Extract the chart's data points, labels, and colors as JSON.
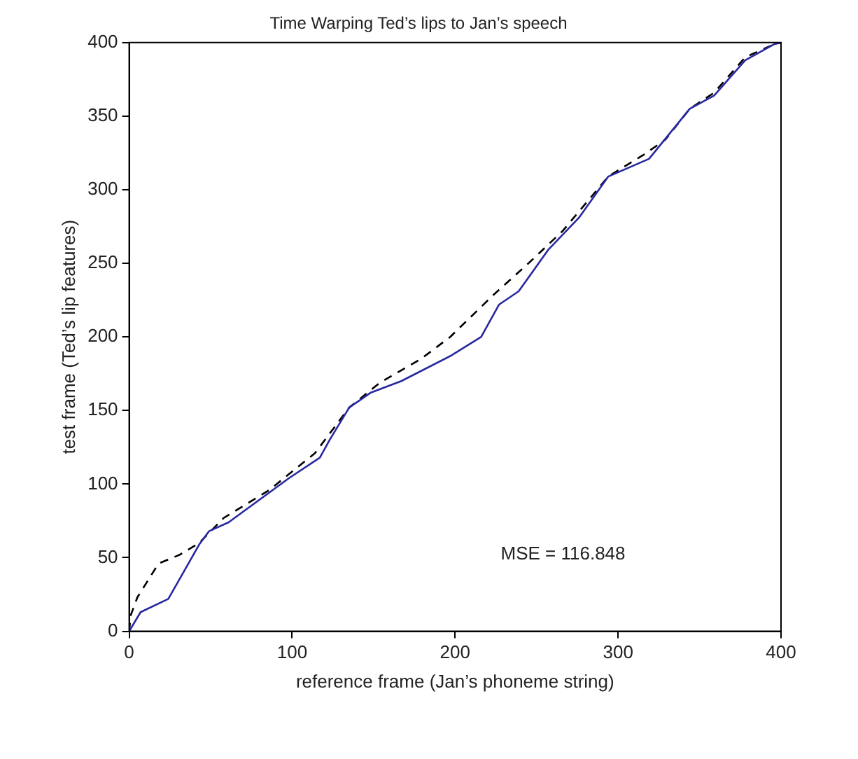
{
  "chart_data": {
    "type": "line",
    "title": "Time Warping Ted’s lips to Jan’s speech",
    "xlabel": "reference frame (Jan’s phoneme string)",
    "ylabel": "test frame (Ted’s lip features)",
    "xlim": [
      0,
      400
    ],
    "ylim": [
      0,
      400
    ],
    "xticks": [
      0,
      100,
      200,
      300,
      400
    ],
    "yticks": [
      0,
      50,
      100,
      150,
      200,
      250,
      300,
      350,
      400
    ],
    "grid": false,
    "legend": false,
    "marker": "none",
    "series": [
      {
        "color": "#2828a0",
        "line_style": "solid",
        "x": [
          0,
          7,
          24,
          43,
          49,
          61,
          98,
          117,
          123,
          135,
          148,
          167,
          197,
          216,
          227,
          239,
          257,
          276,
          294,
          319,
          344,
          359,
          378,
          396,
          400
        ],
        "values": [
          0,
          13,
          22,
          59,
          68,
          74,
          104,
          118,
          130,
          152,
          162,
          170,
          187,
          200,
          222,
          231,
          259,
          281,
          309,
          321,
          355,
          364,
          388,
          399,
          400
        ]
      },
      {
        "color": "#000000",
        "line_style": "dashed",
        "x": [
          0,
          1,
          5,
          18,
          31,
          43,
          58,
          86,
          114,
          135,
          154,
          179,
          197,
          223,
          245,
          266,
          294,
          316,
          329,
          344,
          359,
          378,
          396,
          400
        ],
        "values": [
          0,
          11,
          23,
          46,
          52,
          60,
          77,
          96,
          121,
          152,
          169,
          185,
          200,
          228,
          250,
          272,
          309,
          324,
          334,
          355,
          366,
          390,
          399,
          400
        ]
      }
    ],
    "annotations": [
      "MSE = 116.848"
    ]
  }
}
